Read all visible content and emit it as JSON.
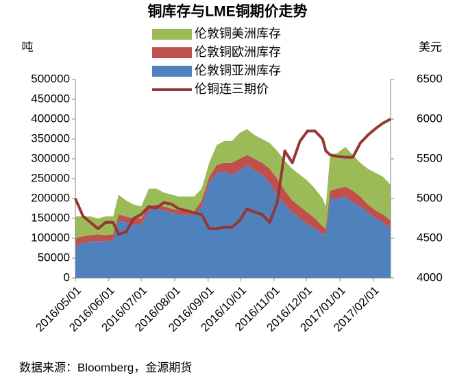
{
  "chart_data": {
    "type": "stacked-area-line",
    "title": "铜库存与LME铜期价走势",
    "y_label": "吨",
    "y2_label": "美元",
    "note": "数据来源：Bloomberg，金源期货",
    "x": [
      "2016/05/01",
      "2016/05/08",
      "2016/05/15",
      "2016/05/22",
      "2016/05/29",
      "2016/06/05",
      "2016/06/10",
      "2016/06/17",
      "2016/06/24",
      "2016/07/01",
      "2016/07/08",
      "2016/07/15",
      "2016/07/22",
      "2016/07/29",
      "2016/08/05",
      "2016/08/12",
      "2016/08/19",
      "2016/08/26",
      "2016/09/02",
      "2016/09/09",
      "2016/09/16",
      "2016/09/23",
      "2016/09/30",
      "2016/10/07",
      "2016/10/14",
      "2016/10/21",
      "2016/10/28",
      "2016/11/04",
      "2016/11/11",
      "2016/11/18",
      "2016/11/25",
      "2016/12/02",
      "2016/12/09",
      "2016/12/16",
      "2016/12/19",
      "2016/12/23",
      "2016/12/30",
      "2017/01/06",
      "2017/01/13",
      "2017/01/20",
      "2017/01/27",
      "2017/02/03",
      "2017/02/10",
      "2017/02/17"
    ],
    "series": [
      {
        "name": "伦敦铜美洲库存",
        "color": "#9bbb59",
        "values": [
          55000,
          50000,
          47000,
          40000,
          47000,
          45000,
          50000,
          40000,
          35000,
          30000,
          45000,
          40000,
          35000,
          35000,
          35000,
          37000,
          37000,
          30000,
          35000,
          50000,
          55000,
          55000,
          65000,
          65000,
          60000,
          60000,
          65000,
          70000,
          75000,
          80000,
          80000,
          80000,
          75000,
          70000,
          55000,
          90000,
          90000,
          100000,
          90000,
          85000,
          90000,
          95000,
          95000,
          90000
        ]
      },
      {
        "name": "伦敦铜欧洲库存",
        "color": "#c0504d",
        "values": [
          20000,
          17000,
          16000,
          18000,
          16000,
          15000,
          15000,
          15000,
          15000,
          15000,
          10000,
          10000,
          10000,
          10000,
          10000,
          10000,
          8000,
          15000,
          15000,
          20000,
          22000,
          30000,
          30000,
          25000,
          30000,
          30000,
          35000,
          40000,
          35000,
          30000,
          30000,
          30000,
          25000,
          20000,
          15000,
          20000,
          25000,
          25000,
          30000,
          25000,
          20000,
          20000,
          20000,
          20000
        ]
      },
      {
        "name": "伦敦铜亚洲库存",
        "color": "#4f81bd",
        "values": [
          80000,
          88000,
          92000,
          92000,
          92000,
          95000,
          145000,
          140000,
          135000,
          135000,
          170000,
          175000,
          170000,
          165000,
          160000,
          158000,
          160000,
          180000,
          240000,
          265000,
          268000,
          260000,
          270000,
          285000,
          270000,
          260000,
          240000,
          210000,
          185000,
          165000,
          150000,
          135000,
          125000,
          110000,
          110000,
          200000,
          200000,
          205000,
          190000,
          180000,
          165000,
          150000,
          140000,
          125000
        ]
      },
      {
        "name": "伦铜连三期价",
        "color": "#953735",
        "axis": "y2",
        "values": [
          5000,
          4780,
          4700,
          4620,
          4700,
          4700,
          4550,
          4580,
          4750,
          4800,
          4900,
          4880,
          4950,
          4930,
          4870,
          4850,
          4820,
          4800,
          4620,
          4620,
          4640,
          4640,
          4720,
          4870,
          4830,
          4800,
          4700,
          4950,
          5600,
          5450,
          5720,
          5850,
          5850,
          5750,
          5600,
          5550,
          5530,
          5520,
          5520,
          5700,
          5800,
          5880,
          5950,
          6000
        ]
      }
    ],
    "xlim": [
      "2016/05/01",
      "2017/02/17"
    ],
    "xticks": [
      "2016/05/01",
      "2016/06/01",
      "2016/07/01",
      "2016/08/01",
      "2016/09/01",
      "2016/10/01",
      "2016/11/01",
      "2016/12/01",
      "2017/01/01",
      "2017/02/01"
    ],
    "ylim": [
      0,
      500000
    ],
    "yticks": [
      0,
      50000,
      100000,
      150000,
      200000,
      250000,
      300000,
      350000,
      400000,
      450000,
      500000
    ],
    "y2lim": [
      4000,
      6500
    ],
    "y2ticks": [
      4000,
      4500,
      5000,
      5500,
      6000,
      6500
    ],
    "legend": "top"
  }
}
